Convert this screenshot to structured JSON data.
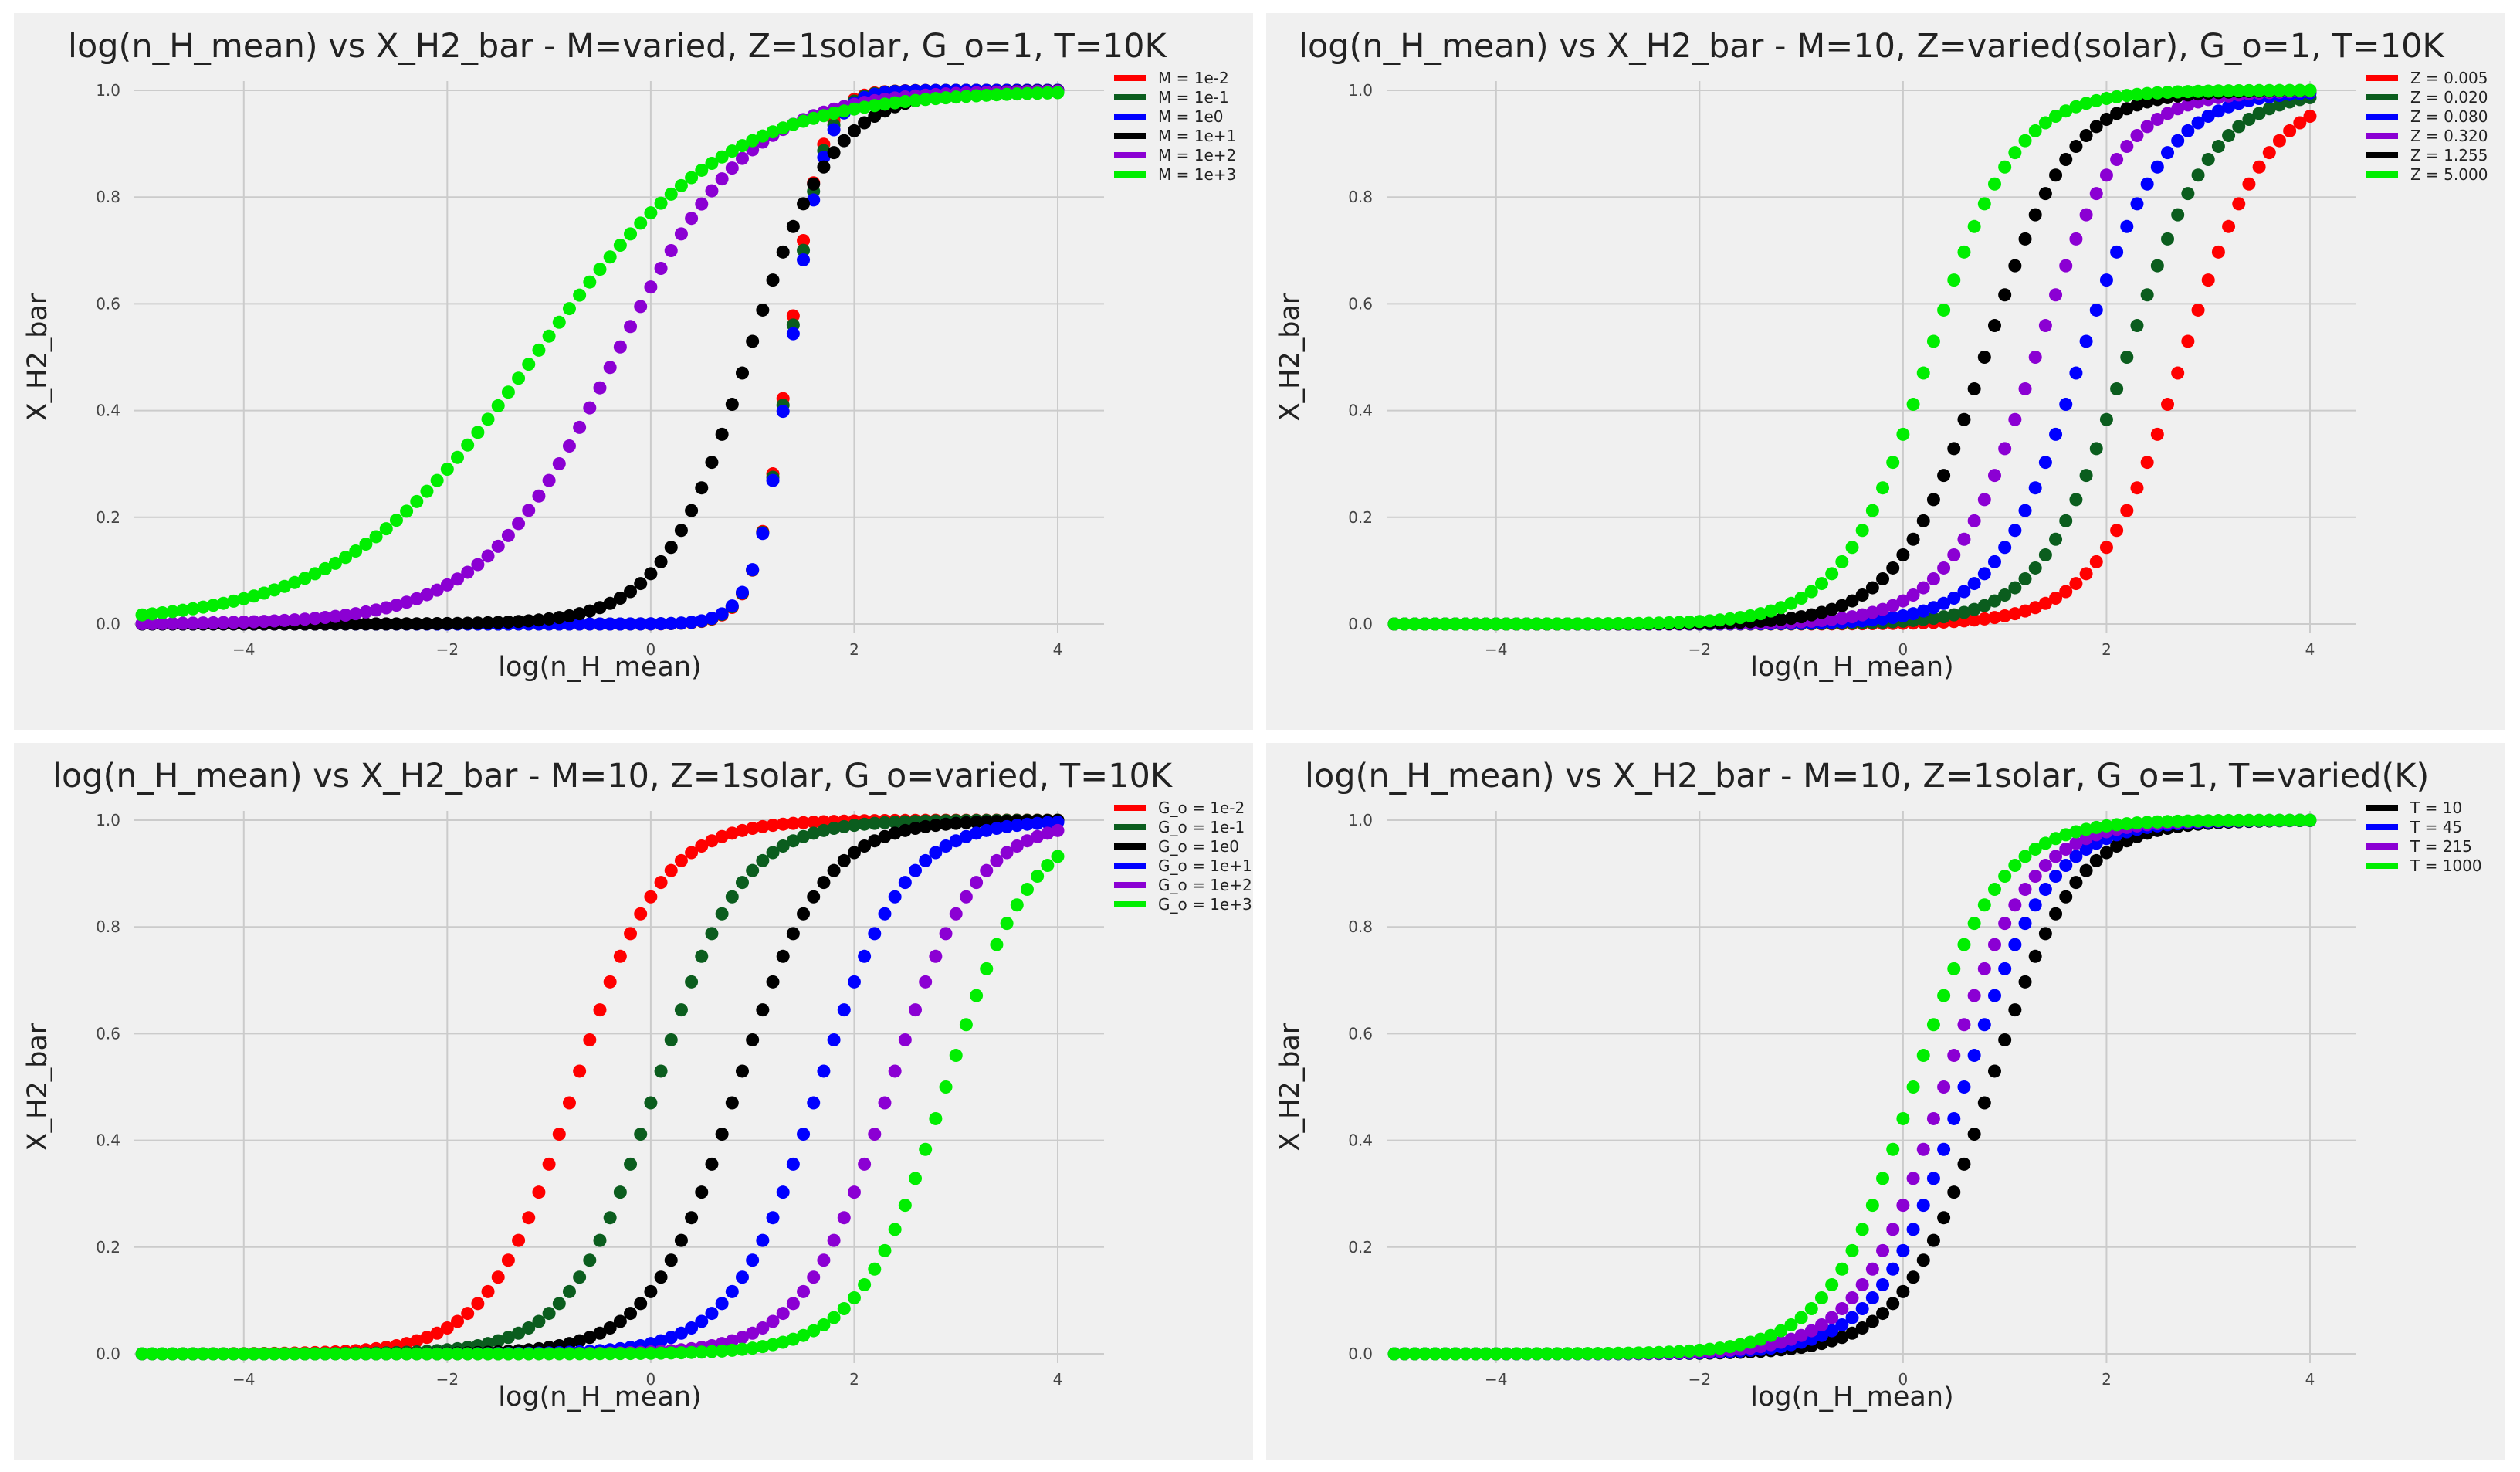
{
  "chart_data": [
    {
      "type": "scatter",
      "title": "log(n_H_mean) vs X_H2_bar - M=varied, Z=1solar, G_o=1, T=10K",
      "xlabel": "log(n_H_mean)",
      "ylabel": "X_H2_bar",
      "xlim": [
        -5,
        4
      ],
      "ylim": [
        0,
        1
      ],
      "xticks": [
        "−4",
        "−2",
        "0",
        "2",
        "4"
      ],
      "yticks": [
        "0.0",
        "0.2",
        "0.4",
        "0.6",
        "0.8",
        "1.0"
      ],
      "grid": true,
      "legend_position": "right",
      "x_range": [
        -5,
        4
      ],
      "points_per_series": 91,
      "series": [
        {
          "name": "M = 1e-2",
          "color": "#ff0000",
          "midpoint": 1.35,
          "slope": 0.16
        },
        {
          "name": "M = 1e-1",
          "color": "#0b5d1e",
          "midpoint": 1.36,
          "slope": 0.165
        },
        {
          "name": "M = 1e0",
          "color": "#0000ff",
          "midpoint": 1.37,
          "slope": 0.17
        },
        {
          "name": "M = 1e+1",
          "color": "#000000",
          "midpoint": 0.95,
          "slope": 0.42
        },
        {
          "name": "M = 1e+2",
          "color": "#8b00d3",
          "midpoint": -0.35,
          "slope": 0.65
        },
        {
          "name": "M = 1e+3",
          "color": "#00ee00",
          "midpoint": -1.15,
          "slope": 0.95
        }
      ]
    },
    {
      "type": "scatter",
      "title": "log(n_H_mean) vs X_H2_bar - M=10, Z=varied(solar), G_o=1, T=10K",
      "xlabel": "log(n_H_mean)",
      "ylabel": "X_H2_bar",
      "xlim": [
        -5,
        4
      ],
      "ylim": [
        0,
        1
      ],
      "xticks": [
        "−4",
        "−2",
        "0",
        "2",
        "4"
      ],
      "yticks": [
        "0.0",
        "0.2",
        "0.4",
        "0.6",
        "0.8",
        "1.0"
      ],
      "grid": true,
      "legend_position": "right",
      "x_range": [
        -5,
        4
      ],
      "points_per_series": 91,
      "series": [
        {
          "name": "Z = 0.005",
          "color": "#ff0000",
          "midpoint": 2.75,
          "slope": 0.42
        },
        {
          "name": "Z = 0.020",
          "color": "#0b5d1e",
          "midpoint": 2.2,
          "slope": 0.42
        },
        {
          "name": "Z = 0.080",
          "color": "#0000ff",
          "midpoint": 1.75,
          "slope": 0.42
        },
        {
          "name": "Z = 0.320",
          "color": "#8b00d3",
          "midpoint": 1.3,
          "slope": 0.42
        },
        {
          "name": "Z = 1.255",
          "color": "#000000",
          "midpoint": 0.8,
          "slope": 0.42
        },
        {
          "name": "Z = 5.000",
          "color": "#00ee00",
          "midpoint": 0.25,
          "slope": 0.42
        }
      ]
    },
    {
      "type": "scatter",
      "title": "log(n_H_mean) vs X_H2_bar - M=10, Z=1solar, G_o=varied, T=10K",
      "xlabel": "log(n_H_mean)",
      "ylabel": "X_H2_bar",
      "xlim": [
        -5,
        4
      ],
      "ylim": [
        0,
        1
      ],
      "xticks": [
        "−4",
        "−2",
        "0",
        "2",
        "4"
      ],
      "yticks": [
        "0.0",
        "0.2",
        "0.4",
        "0.6",
        "0.8",
        "1.0"
      ],
      "grid": true,
      "legend_position": "right",
      "x_range": [
        -5,
        4
      ],
      "points_per_series": 91,
      "series": [
        {
          "name": "G_o = 1e-2",
          "color": "#ff0000",
          "midpoint": -0.75,
          "slope": 0.42
        },
        {
          "name": "G_o = 1e-1",
          "color": "#0b5d1e",
          "midpoint": 0.05,
          "slope": 0.42
        },
        {
          "name": "G_o = 1e0",
          "color": "#000000",
          "midpoint": 0.85,
          "slope": 0.42
        },
        {
          "name": "G_o = 1e+1",
          "color": "#0000ff",
          "midpoint": 1.65,
          "slope": 0.42
        },
        {
          "name": "G_o = 1e+2",
          "color": "#8b00d3",
          "midpoint": 2.35,
          "slope": 0.42
        },
        {
          "name": "G_o = 1e+3",
          "color": "#00ee00",
          "midpoint": 2.9,
          "slope": 0.42
        }
      ]
    },
    {
      "type": "scatter",
      "title": "log(n_H_mean) vs X_H2_bar - M=10, Z=1solar, G_o=1, T=varied(K)",
      "xlabel": "log(n_H_mean)",
      "ylabel": "X_H2_bar",
      "xlim": [
        -5,
        4
      ],
      "ylim": [
        0,
        1
      ],
      "xticks": [
        "−4",
        "−2",
        "0",
        "2",
        "4"
      ],
      "yticks": [
        "0.0",
        "0.2",
        "0.4",
        "0.6",
        "0.8",
        "1.0"
      ],
      "grid": true,
      "legend_position": "right",
      "x_range": [
        -5,
        4
      ],
      "points_per_series": 91,
      "series": [
        {
          "name": "T = 10",
          "color": "#000000",
          "midpoint": 0.85,
          "slope": 0.42
        },
        {
          "name": "T = 45",
          "color": "#0000ff",
          "midpoint": 0.6,
          "slope": 0.42
        },
        {
          "name": "T = 215",
          "color": "#8b00d3",
          "midpoint": 0.4,
          "slope": 0.42
        },
        {
          "name": "T = 1000",
          "color": "#00ee00",
          "midpoint": 0.1,
          "slope": 0.42
        }
      ]
    }
  ]
}
